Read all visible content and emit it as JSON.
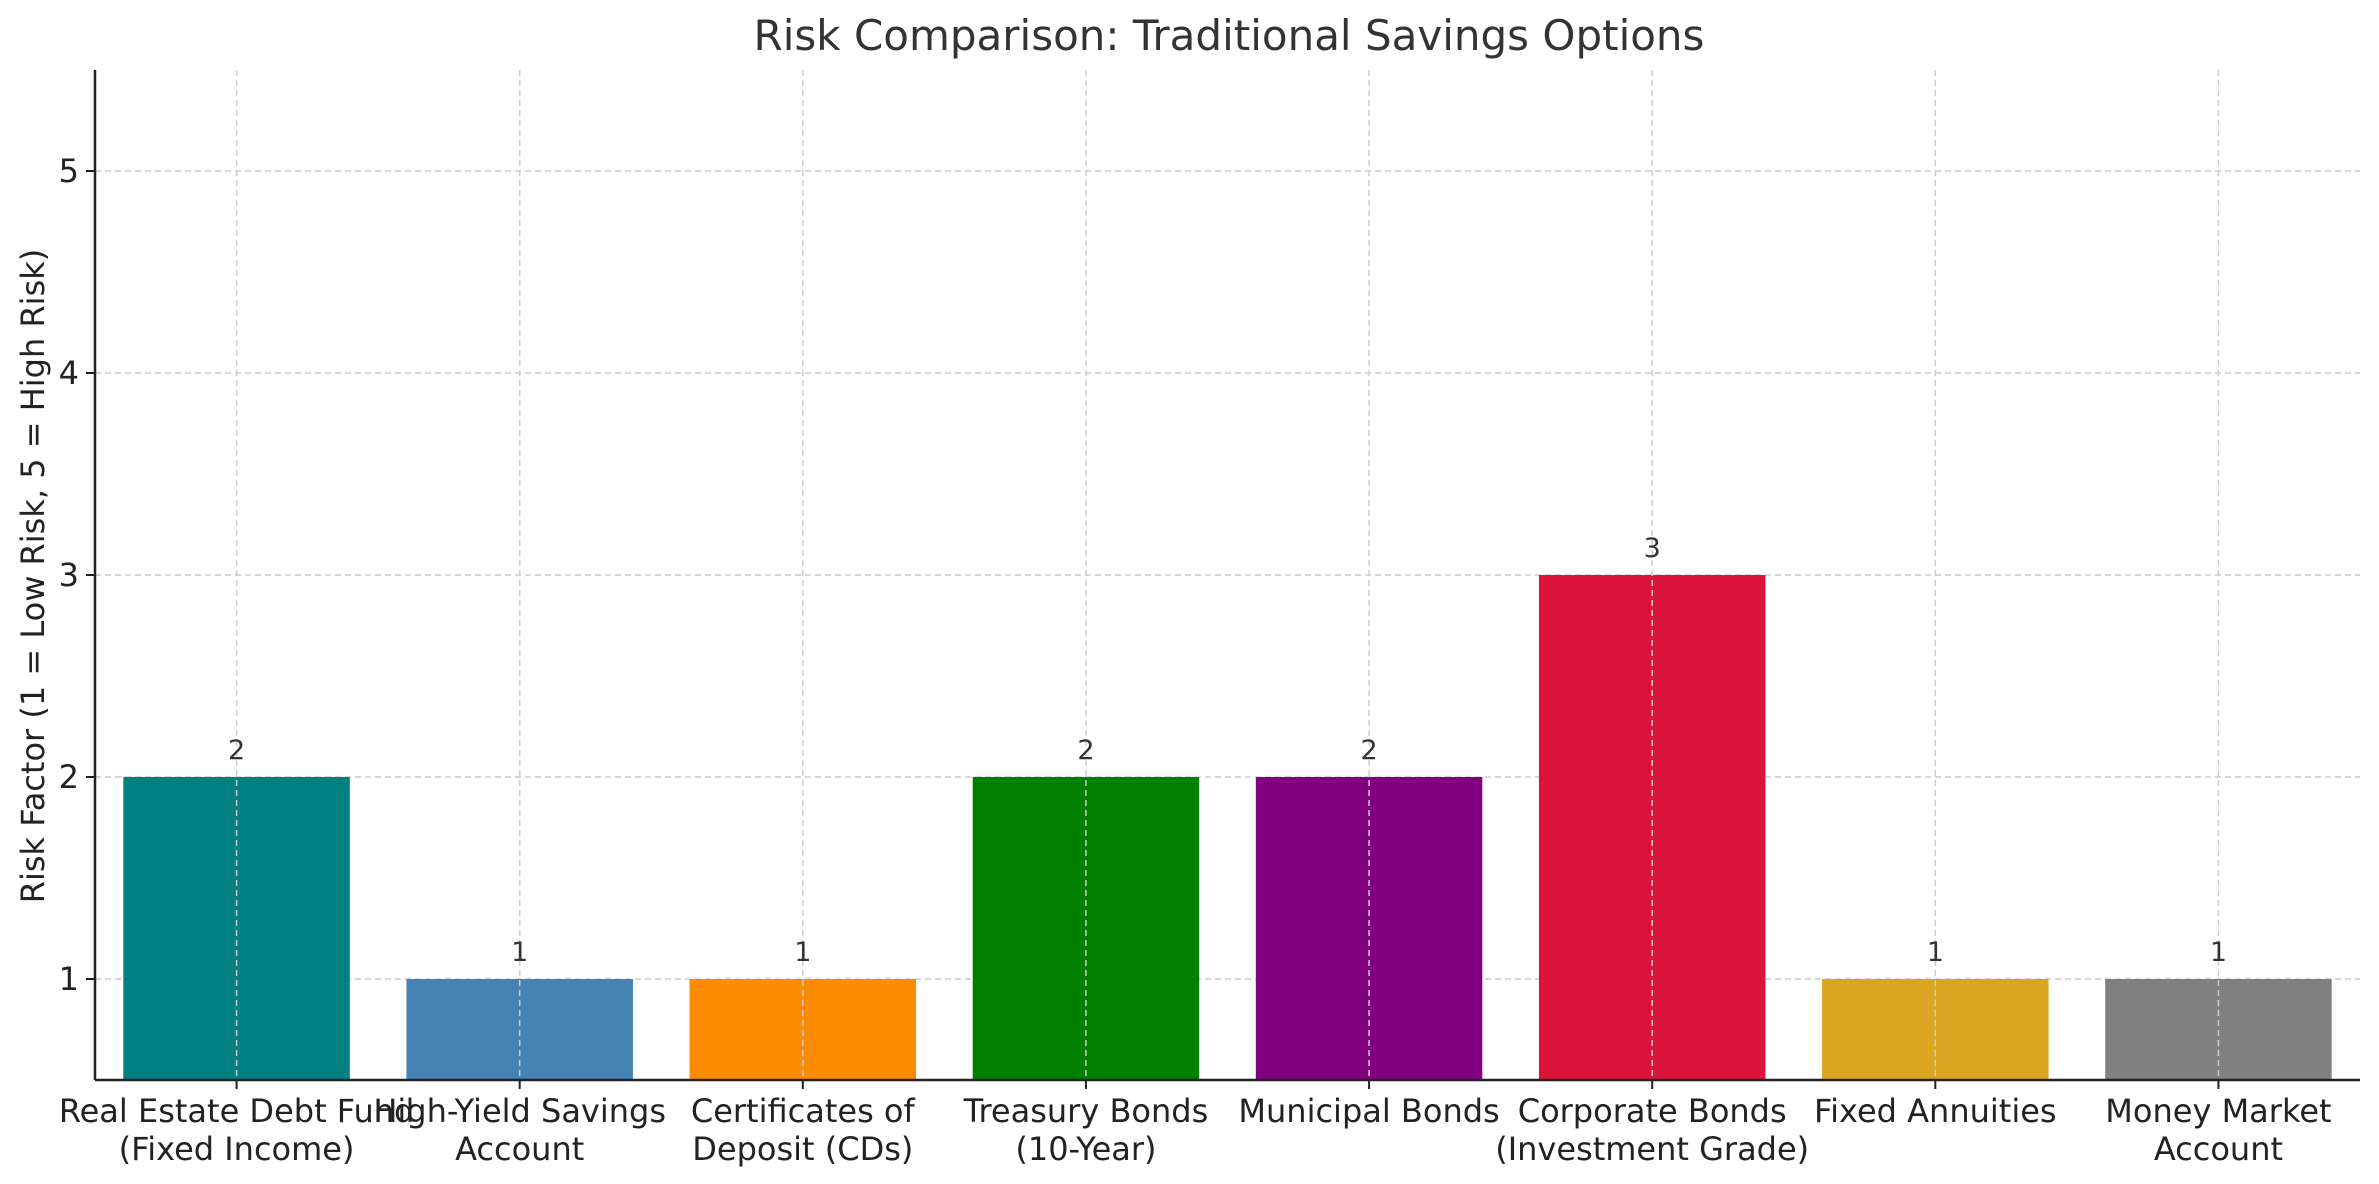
{
  "chart_data": {
    "type": "bar",
    "title": "Risk Comparison: Traditional Savings Options",
    "xlabel": "",
    "ylabel": "Risk Factor (1 = Low Risk, 5 = High Risk)",
    "categories": [
      [
        "Real Estate Debt Fund",
        "(Fixed Income)"
      ],
      [
        "High-Yield Savings",
        "Account"
      ],
      [
        "Certificates of",
        "Deposit (CDs)"
      ],
      [
        "Treasury Bonds",
        "(10-Year)"
      ],
      [
        "Municipal Bonds"
      ],
      [
        "Corporate Bonds",
        "(Investment Grade)"
      ],
      [
        "Fixed Annuities"
      ],
      [
        "Money Market",
        "Account"
      ]
    ],
    "values": [
      2,
      1,
      1,
      2,
      2,
      3,
      1,
      1
    ],
    "data_labels": [
      "2",
      "1",
      "1",
      "2",
      "2",
      "3",
      "1",
      "1"
    ],
    "colors": [
      "#008080",
      "#4682B4",
      "#FF8C00",
      "#008000",
      "#800080",
      "#DC143C",
      "#DAA520",
      "#808080"
    ],
    "ylim": [
      0.5,
      5.5
    ],
    "yticks": [
      1,
      2,
      3,
      4,
      5
    ],
    "grid": true,
    "grid_style": "dashed",
    "legend": "none"
  }
}
